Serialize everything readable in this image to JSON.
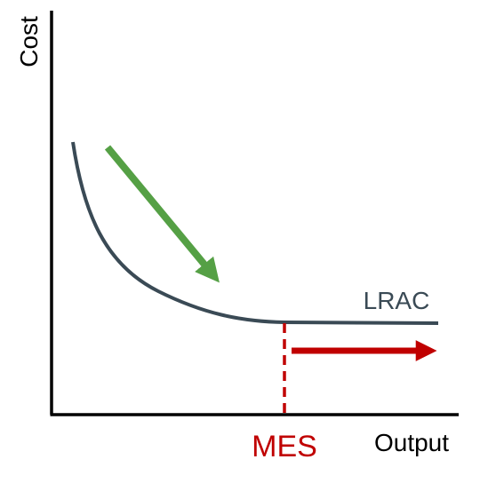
{
  "axes": {
    "y_label": "Cost",
    "x_label": "Output"
  },
  "curve": {
    "label": "LRAC"
  },
  "marker": {
    "label": "MES"
  }
}
